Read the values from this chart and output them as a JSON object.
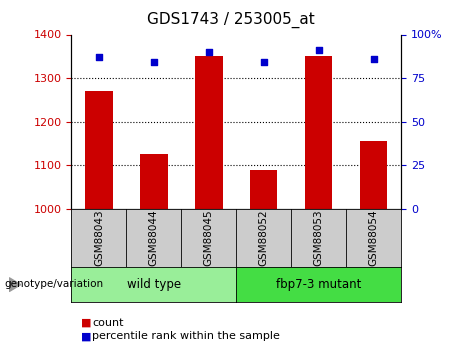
{
  "title": "GDS1743 / 253005_at",
  "samples": [
    "GSM88043",
    "GSM88044",
    "GSM88045",
    "GSM88052",
    "GSM88053",
    "GSM88054"
  ],
  "counts": [
    1270,
    1125,
    1350,
    1090,
    1350,
    1155
  ],
  "percentile_ranks": [
    87,
    84,
    90,
    84,
    91,
    86
  ],
  "ylim_left": [
    1000,
    1400
  ],
  "ylim_right": [
    0,
    100
  ],
  "yticks_left": [
    1000,
    1100,
    1200,
    1300,
    1400
  ],
  "yticks_right": [
    0,
    25,
    50,
    75,
    100
  ],
  "bar_color": "#cc0000",
  "dot_color": "#0000cc",
  "bar_width": 0.5,
  "group_info": [
    {
      "label": "wild type",
      "start": 0,
      "end": 2,
      "color": "#99ee99"
    },
    {
      "label": "fbp7-3 mutant",
      "start": 3,
      "end": 5,
      "color": "#44dd44"
    }
  ],
  "genotype_label": "genotype/variation",
  "legend_count_label": "count",
  "legend_percentile_label": "percentile rank within the sample",
  "tick_label_color_left": "#cc0000",
  "tick_label_color_right": "#0000cc",
  "background_xtick": "#cccccc",
  "grid_yticks": [
    1100,
    1200,
    1300
  ]
}
